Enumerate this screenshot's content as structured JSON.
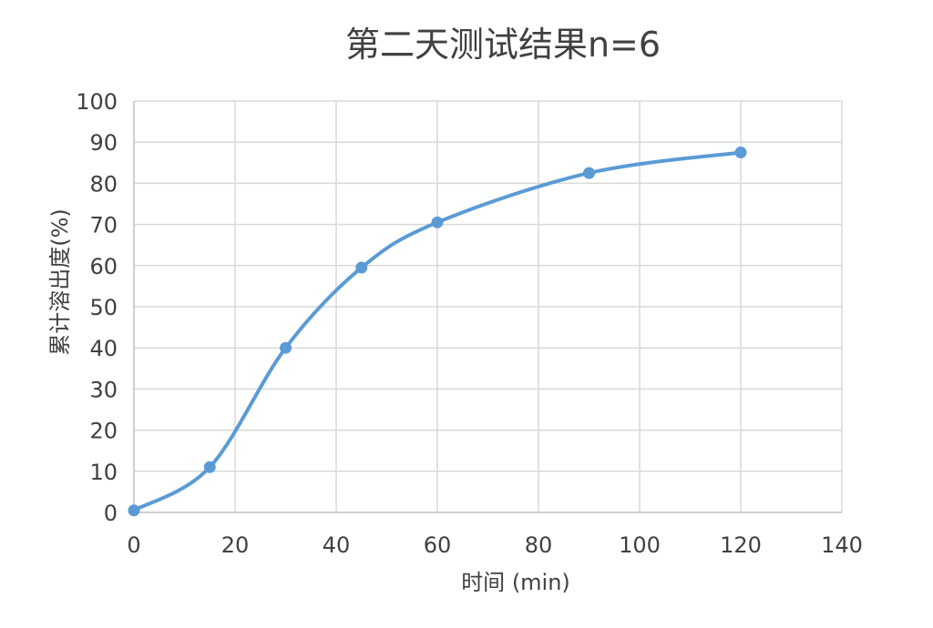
{
  "chart_data": {
    "type": "scatter",
    "title": "第二天测试结果n=6",
    "xlabel": "时间 (min)",
    "ylabel": "累计溶出度(%)",
    "xlim": [
      0,
      140
    ],
    "ylim": [
      0,
      100
    ],
    "x_ticks": [
      "0",
      "20",
      "40",
      "60",
      "80",
      "100",
      "120",
      "140"
    ],
    "y_ticks": [
      "0",
      "10",
      "20",
      "30",
      "40",
      "50",
      "60",
      "70",
      "80",
      "90",
      "100"
    ],
    "grid": true,
    "smooth_line": true,
    "series": [
      {
        "x": [
          0,
          15,
          30,
          45,
          60,
          90,
          120
        ],
        "y": [
          0.5,
          11,
          40,
          59.5,
          70.5,
          82.5,
          87.5
        ],
        "color": "#5b9bd5"
      }
    ]
  }
}
